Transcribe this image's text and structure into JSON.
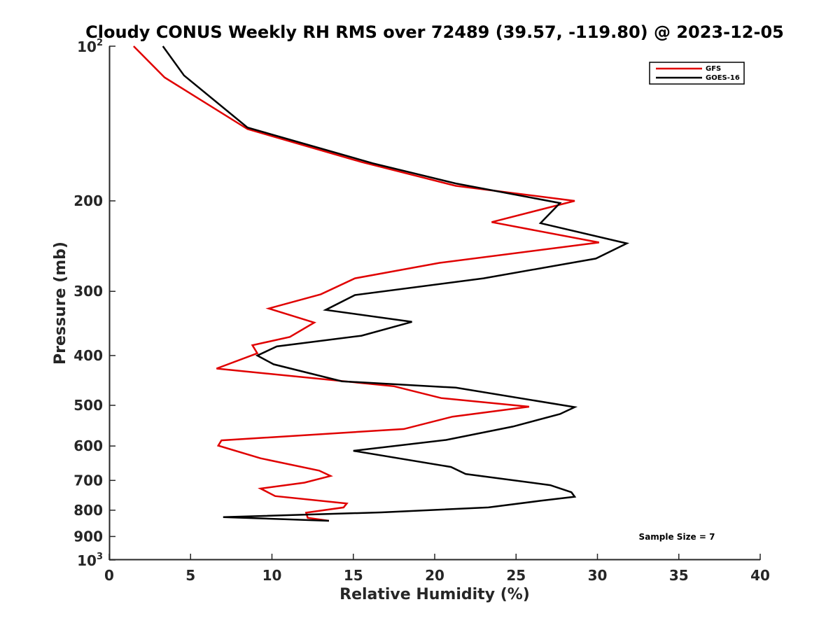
{
  "chart_data": {
    "type": "line",
    "title": "Cloudy CONUS Weekly RH RMS over 72489 (39.57, -119.80) @ 2023-12-05",
    "xlabel": "Relative Humidity (%)",
    "ylabel": "Pressure (mb)",
    "xlim": [
      0,
      40
    ],
    "ylim": [
      100,
      1000
    ],
    "y_scale": "log",
    "y_reversed": true,
    "grid": false,
    "legend_position": "top-right",
    "annotation": "Sample Size = 7",
    "x_ticks": [
      "0",
      "5",
      "10",
      "15",
      "20",
      "25",
      "30",
      "35",
      "40"
    ],
    "y_ticks": [
      {
        "value": 100,
        "base": "10",
        "exp": "2"
      },
      {
        "value": 200,
        "label": "200"
      },
      {
        "value": 300,
        "label": "300"
      },
      {
        "value": 400,
        "label": "400"
      },
      {
        "value": 500,
        "label": "500"
      },
      {
        "value": 600,
        "label": "600"
      },
      {
        "value": 700,
        "label": "700"
      },
      {
        "value": 800,
        "label": "800"
      },
      {
        "value": 900,
        "label": "900"
      },
      {
        "value": 1000,
        "base": "10",
        "exp": "3"
      }
    ],
    "series": [
      {
        "name": "GFS",
        "color": "#e00000",
        "x": [
          1.5,
          3.4,
          8.5,
          15.5,
          21.3,
          28.6,
          23.5,
          30.1,
          20.3,
          15.1,
          13.0,
          9.8,
          12.6,
          11.1,
          8.8,
          9.1,
          6.6,
          17.5,
          20.4,
          25.8,
          21.1,
          18.1,
          6.9,
          6.7,
          9.3,
          12.9,
          13.6,
          12.0,
          9.3,
          10.2,
          14.6,
          14.4,
          12.1,
          12.2,
          13.5
        ],
        "y": [
          100,
          115,
          145,
          168,
          187,
          200,
          220,
          241,
          264,
          283,
          304,
          324,
          345,
          368,
          382,
          396,
          424,
          459,
          484,
          503,
          526,
          556,
          585,
          599,
          634,
          670,
          686,
          707,
          726,
          751,
          776,
          790,
          809,
          828,
          839
        ]
      },
      {
        "name": "GOES-16",
        "color": "#000000",
        "x": [
          3.3,
          4.6,
          8.5,
          16.2,
          21.3,
          27.7,
          26.5,
          31.8,
          29.9,
          23.0,
          15.1,
          13.3,
          18.6,
          15.5,
          10.3,
          9.1,
          10.1,
          14.3,
          21.3,
          28.6,
          27.7,
          24.8,
          20.7,
          15.0,
          21.0,
          21.9,
          27.1,
          28.4,
          28.6,
          26.5,
          23.3,
          16.7,
          7.0,
          13.5
        ],
        "y": [
          100,
          114,
          144,
          169,
          185,
          202,
          221,
          242,
          259,
          283,
          305,
          326,
          344,
          366,
          384,
          400,
          416,
          449,
          462,
          504,
          520,
          550,
          584,
          613,
          659,
          680,
          715,
          738,
          753,
          767,
          790,
          808,
          825,
          839
        ]
      }
    ]
  }
}
